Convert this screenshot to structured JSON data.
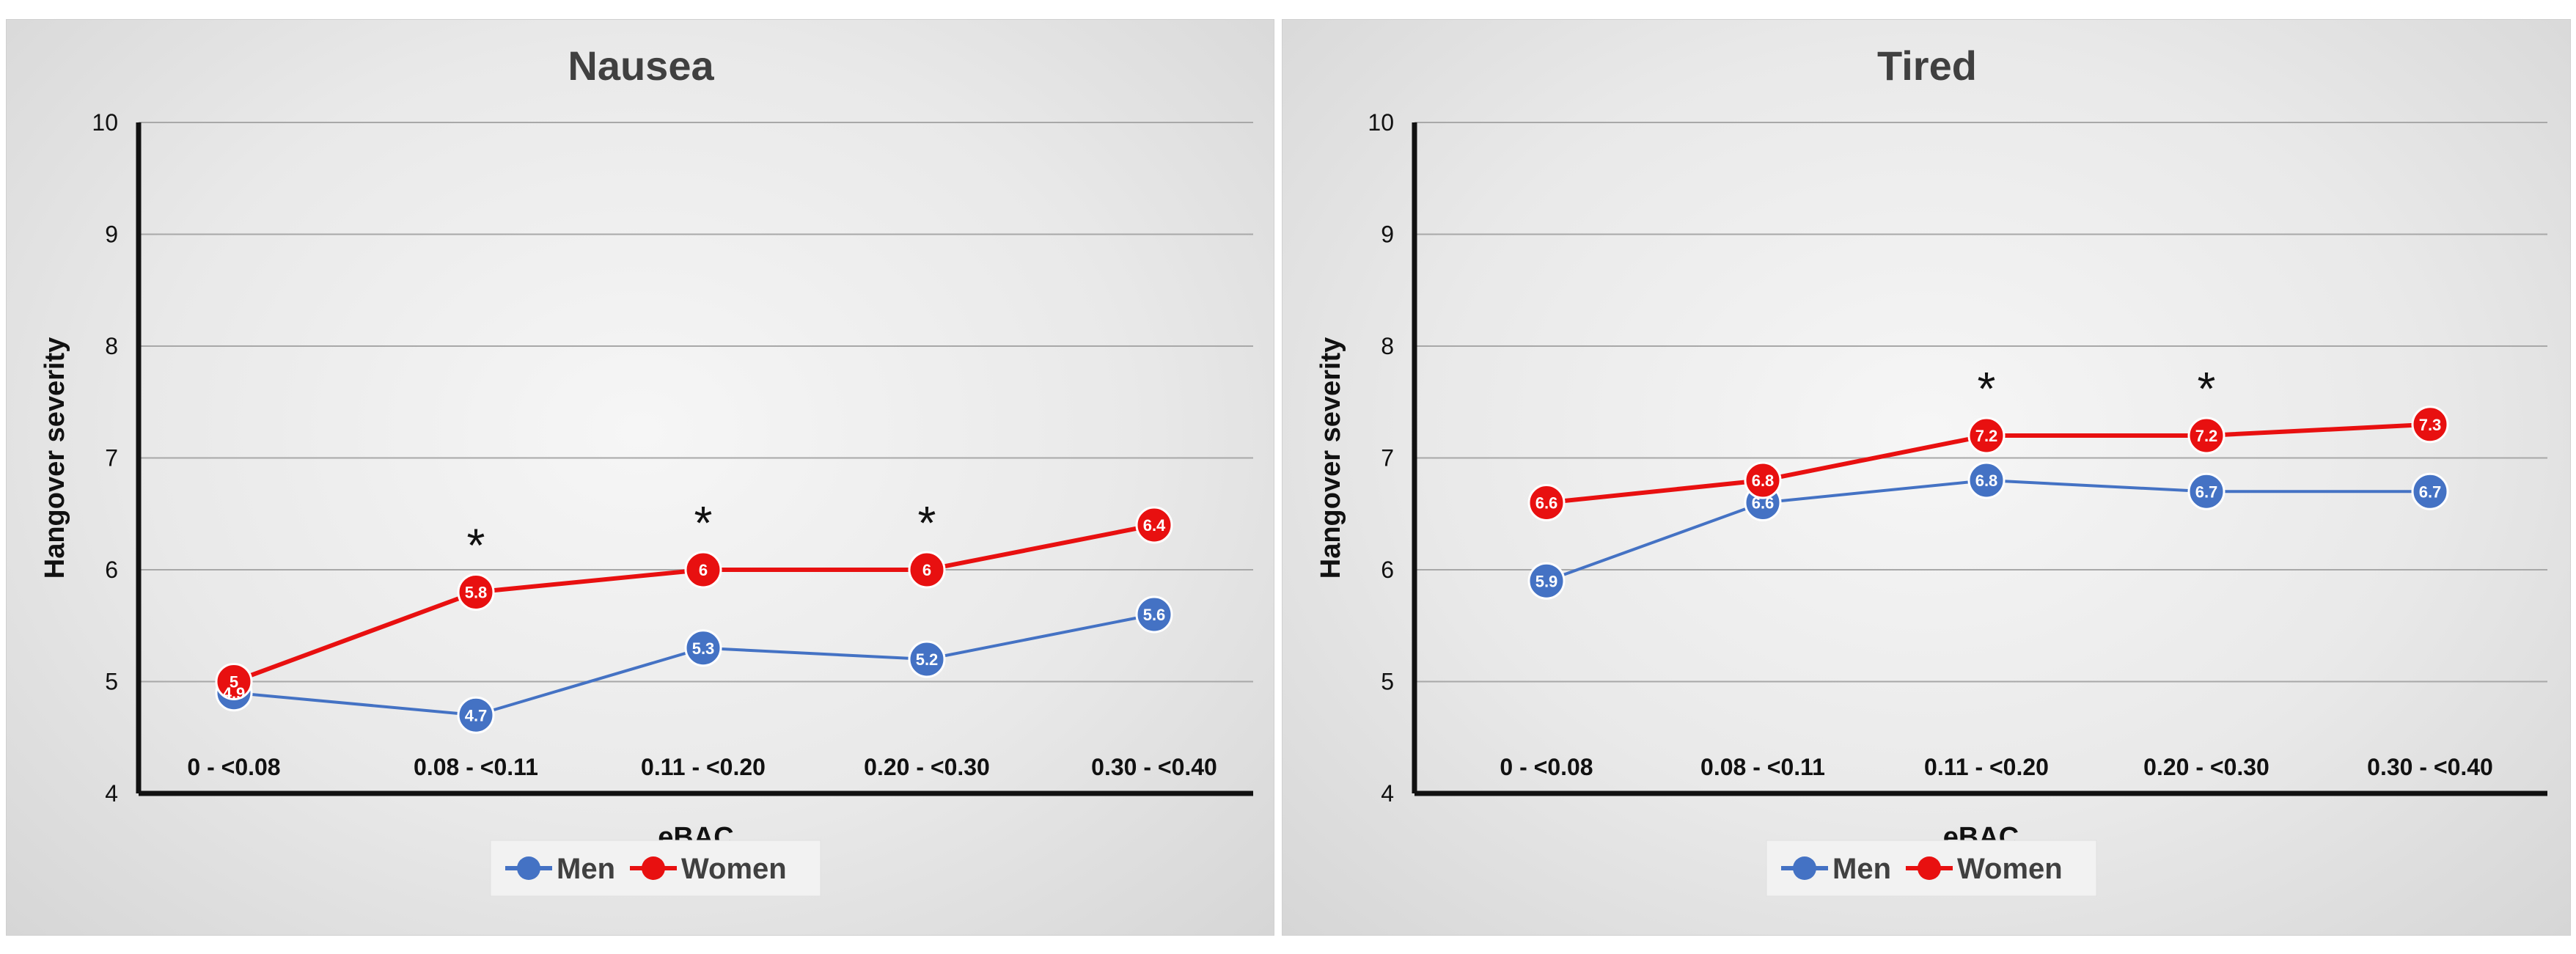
{
  "chart_data": [
    {
      "type": "line",
      "title": "Nausea",
      "xlabel": "eBAC",
      "ylabel": "Hangover severity",
      "categories": [
        "0 - <0.08",
        "0.08 - <0.11",
        "0.11 - <0.20",
        "0.20 - <0.30",
        "0.30 - <0.40"
      ],
      "ylim": [
        4,
        10
      ],
      "yticks": [
        "4",
        "5",
        "6",
        "7",
        "8",
        "9",
        "10"
      ],
      "grid": true,
      "legend": "bottom",
      "series": [
        {
          "name": "Men",
          "color": "#4472C4",
          "values": [
            4.9,
            4.7,
            5.3,
            5.2,
            5.6
          ],
          "labels": [
            "4.9",
            "4.7",
            "5.3",
            "5.2",
            "5.6"
          ]
        },
        {
          "name": "Women",
          "color": "#E81010",
          "values": [
            5,
            5.8,
            6,
            6,
            6.4
          ],
          "labels": [
            "5",
            "5.8",
            "6",
            "6",
            "6.4"
          ]
        }
      ],
      "annotations": [
        {
          "category": "0.08 - <0.11",
          "text": "*"
        },
        {
          "category": "0.11 - <0.20",
          "text": "*"
        },
        {
          "category": "0.20 - <0.30",
          "text": "*"
        }
      ]
    },
    {
      "type": "line",
      "title": "Tired",
      "xlabel": "eBAC",
      "ylabel": "Hangover severity",
      "categories": [
        "0 - <0.08",
        "0.08 - <0.11",
        "0.11 - <0.20",
        "0.20 - <0.30",
        "0.30 - <0.40"
      ],
      "ylim": [
        4,
        10
      ],
      "yticks": [
        "4",
        "5",
        "6",
        "7",
        "8",
        "9",
        "10"
      ],
      "grid": true,
      "legend": "bottom",
      "series": [
        {
          "name": "Men",
          "color": "#4472C4",
          "values": [
            5.9,
            6.6,
            6.8,
            6.7,
            6.7
          ],
          "labels": [
            "5.9",
            "6.6",
            "6.8",
            "6.7",
            "6.7"
          ]
        },
        {
          "name": "Women",
          "color": "#E81010",
          "values": [
            6.6,
            6.8,
            7.2,
            7.2,
            7.3
          ],
          "labels": [
            "6.6",
            "6.8",
            "7.2",
            "7.2",
            "7.3"
          ]
        }
      ],
      "annotations": [
        {
          "category": "0.11 - <0.20",
          "text": "*"
        },
        {
          "category": "0.20 - <0.30",
          "text": "*"
        }
      ]
    }
  ]
}
